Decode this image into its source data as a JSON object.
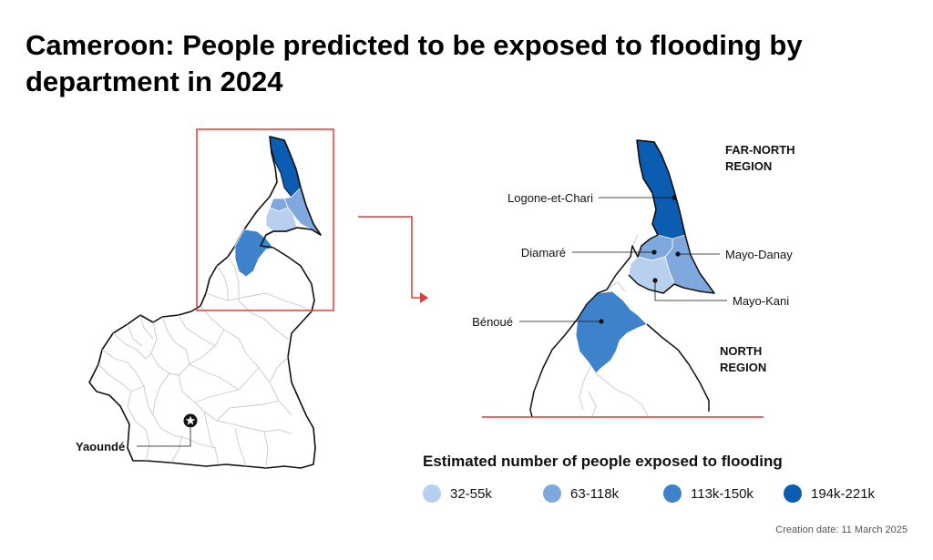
{
  "title": "Cameroon: People predicted to be exposed to flooding by department in 2024",
  "regions": {
    "far_north": [
      "FAR-NORTH",
      "REGION"
    ],
    "north": [
      "NORTH",
      "REGION"
    ]
  },
  "departments": {
    "logone_et_chari": "Logone-et-Chari",
    "diamare": "Diamaré",
    "mayo_danay": "Mayo-Danay",
    "mayo_kani": "Mayo-Kani",
    "benoue": "Bénoué"
  },
  "capital": "Yaoundé",
  "legend": {
    "title": "Estimated number of people exposed to flooding",
    "items": [
      {
        "label": "32-55k",
        "color": "#b9cfee"
      },
      {
        "label": "63-118k",
        "color": "#7fa8de"
      },
      {
        "label": "113k-150k",
        "color": "#3f82cc"
      },
      {
        "label": "194k-221k",
        "color": "#0a5db0"
      }
    ]
  },
  "colors": {
    "border": "#111111",
    "highlight": "#e03a3a",
    "internal_border": "#c9c9c9"
  },
  "credit": "Creation date: 11 March 2025"
}
